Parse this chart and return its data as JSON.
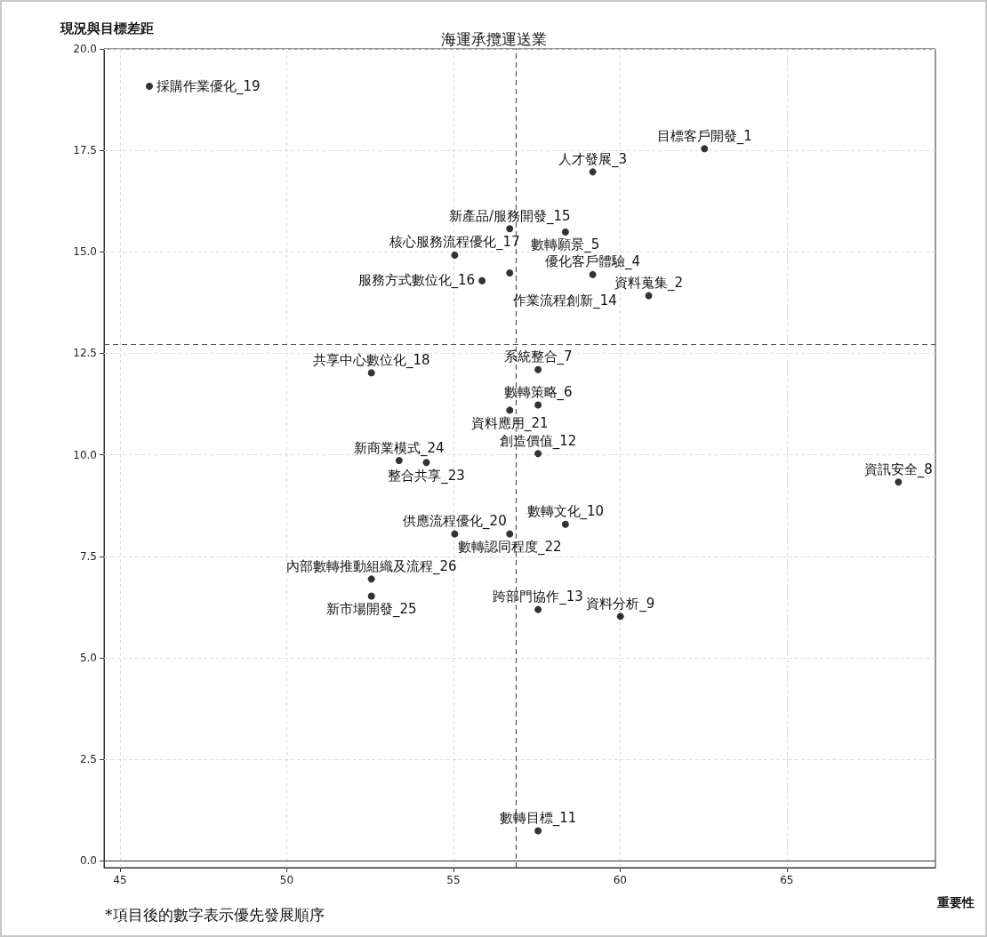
{
  "chart_data": {
    "type": "scatter",
    "title": "海運承攬運送業",
    "xlabel": "重要性",
    "ylabel": "現況與目標差距",
    "xlim": [
      44.52,
      69.46
    ],
    "xticks": [
      45,
      50,
      55,
      60,
      65
    ],
    "ylim": [
      -0.17,
      20
    ],
    "yticks": [
      {
        "value": 0,
        "label": "0.0"
      },
      {
        "value": 2.5,
        "label": "2.5"
      },
      {
        "value": 5,
        "label": "5.0"
      },
      {
        "value": 7.5,
        "label": "7.5"
      },
      {
        "value": 10,
        "label": "10.0"
      },
      {
        "value": 12.5,
        "label": "12.5"
      },
      {
        "value": 15,
        "label": "15.0"
      },
      {
        "value": 17.5,
        "label": "17.5"
      },
      {
        "value": 20,
        "label": "20.0"
      }
    ],
    "grid": true,
    "marker": "circle",
    "series": [
      {
        "color": "#000000",
        "x": [
          45.88,
          62.53,
          59.18,
          56.69,
          58.36,
          55.04,
          59.18,
          56.69,
          60.86,
          55.86,
          52.54,
          57.54,
          57.54,
          56.69,
          53.37,
          57.54,
          54.19,
          68.35,
          55.04,
          58.36,
          56.69,
          52.54,
          52.54,
          57.54,
          60.01,
          57.54
        ],
        "values": [
          19.08,
          17.54,
          16.97,
          15.57,
          15.49,
          14.92,
          14.44,
          14.48,
          13.92,
          14.29,
          12.02,
          12.1,
          11.23,
          11.1,
          9.86,
          10.03,
          9.81,
          9.33,
          8.05,
          8.29,
          8.05,
          6.94,
          6.52,
          6.19,
          6.02,
          0.74
        ]
      }
    ],
    "ref_lines": [
      {
        "axis": "x",
        "value": 56.87,
        "color": "#555555",
        "line_style": "dashed"
      },
      {
        "axis": "y",
        "value": 12.72,
        "color": "#555555",
        "line_style": "dashed"
      },
      {
        "axis": "y",
        "value": 0,
        "color": "#333333",
        "line_style": "solid"
      }
    ],
    "annotations": [
      {
        "text": "採購作業優化_19",
        "x": 45.88,
        "y": 19.08
      },
      {
        "text": "目標客戶開發_1",
        "x": 62.53,
        "y": 17.54
      },
      {
        "text": "人才發展_3",
        "x": 59.18,
        "y": 16.97
      },
      {
        "text": "新產品/服務開發_15",
        "x": 56.69,
        "y": 15.57
      },
      {
        "text": "數轉願景_5",
        "x": 58.36,
        "y": 15.49
      },
      {
        "text": "核心服務流程優化_17",
        "x": 55.04,
        "y": 14.92
      },
      {
        "text": "優化客戶體驗_4",
        "x": 59.18,
        "y": 14.44
      },
      {
        "text": "作業流程創新_14",
        "x": 56.69,
        "y": 14.48
      },
      {
        "text": "資料蒐集_2",
        "x": 60.86,
        "y": 13.92
      },
      {
        "text": "服務方式數位化_16",
        "x": 55.86,
        "y": 14.29
      },
      {
        "text": "共享中心數位化_18",
        "x": 52.54,
        "y": 12.02
      },
      {
        "text": "系統整合_7",
        "x": 57.54,
        "y": 12.1
      },
      {
        "text": "數轉策略_6",
        "x": 57.54,
        "y": 11.23
      },
      {
        "text": "資料應用_21",
        "x": 56.69,
        "y": 11.1
      },
      {
        "text": "新商業模式_24",
        "x": 53.37,
        "y": 9.86
      },
      {
        "text": "創造價值_12",
        "x": 57.54,
        "y": 10.03
      },
      {
        "text": "整合共享_23",
        "x": 54.19,
        "y": 9.81
      },
      {
        "text": "資訊安全_8",
        "x": 68.35,
        "y": 9.33
      },
      {
        "text": "供應流程優化_20",
        "x": 55.04,
        "y": 8.05
      },
      {
        "text": "數轉文化_10",
        "x": 58.36,
        "y": 8.29
      },
      {
        "text": "數轉認同程度_22",
        "x": 56.69,
        "y": 8.05
      },
      {
        "text": "內部數轉推動組織及流程_26",
        "x": 52.54,
        "y": 6.94
      },
      {
        "text": "新市場開發_25",
        "x": 52.54,
        "y": 6.52
      },
      {
        "text": "跨部門協作_13",
        "x": 57.54,
        "y": 6.19
      },
      {
        "text": "資料分析_9",
        "x": 60.01,
        "y": 6.02
      },
      {
        "text": "數轉目標_11",
        "x": 57.54,
        "y": 0.74
      },
      "*項目後的數字表示優先發展順序"
    ]
  }
}
